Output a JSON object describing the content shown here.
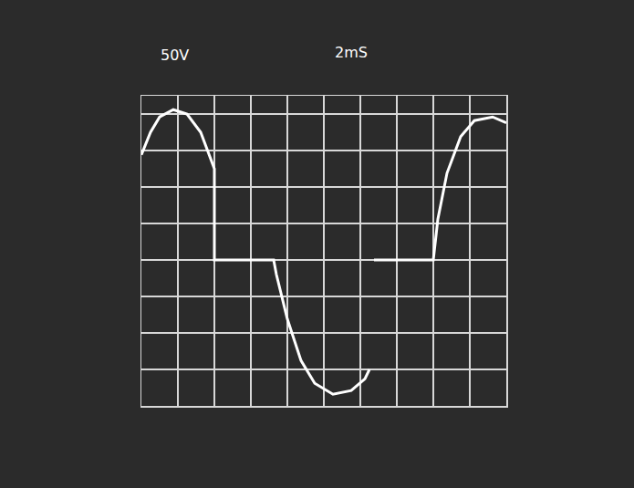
{
  "chart_data": {
    "type": "line",
    "annotations": [
      "50V",
      "2mS"
    ],
    "x": [
      0,
      0.5,
      1.0,
      1.75,
      2.5,
      3.25,
      4.0,
      4.0,
      7.25,
      7.4,
      8.0,
      8.75,
      9.5,
      10.5,
      11.5,
      12.25,
      12.5,
      12.6,
      12.75,
      16.0,
      16.25,
      16.75,
      17.5,
      18.25,
      19.25,
      20
    ],
    "values": [
      144,
      175,
      196,
      206,
      200,
      175,
      125,
      0,
      0,
      -20,
      -81,
      -138,
      -169,
      -184,
      -179,
      -163,
      -150,
      null,
      0,
      0,
      56,
      119,
      169,
      191,
      196,
      188
    ],
    "color": "#ffffff",
    "xlim": [
      0,
      20
    ],
    "xticks": [
      0,
      2,
      4,
      6,
      8,
      10,
      12,
      14,
      16,
      18,
      20
    ],
    "ylim": [
      -200,
      225
    ],
    "yticks": [
      -200,
      -150,
      -100,
      -50,
      0,
      50,
      100,
      150,
      200
    ],
    "grid": true,
    "tick_labels": false
  }
}
